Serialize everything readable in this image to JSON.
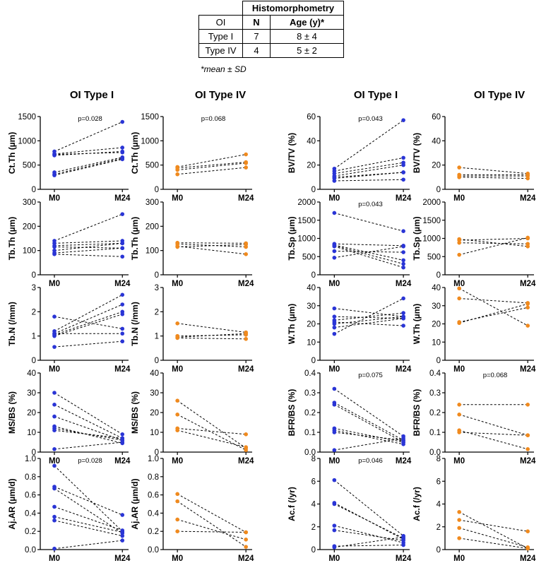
{
  "table": {
    "group_header": "Histomorphometry",
    "headers": [
      "OI",
      "N",
      "Age (y)*"
    ],
    "rows": [
      [
        "Type I",
        "7",
        "8 ± 4"
      ],
      [
        "Type IV",
        "4",
        "5 ± 2"
      ]
    ],
    "footnote": "*mean ± SD"
  },
  "column_titles": [
    "OI Type I",
    "OI Type IV",
    "OI Type I",
    "OI Type IV"
  ],
  "colors": {
    "type1": "#2a35d6",
    "type4": "#f08a1e",
    "line": "#000000"
  },
  "chart_data": [
    {
      "type": "line",
      "ylabel": "Ct.Th (µm)",
      "categories": [
        "M0",
        "M24"
      ],
      "ylim": [
        0,
        1500
      ],
      "yticks": [
        "0",
        "500",
        "1000",
        "1500"
      ],
      "p": "p=0.028",
      "group": "Type I",
      "series": [
        [
          780,
          1390
        ],
        [
          730,
          860
        ],
        [
          700,
          780
        ],
        [
          720,
          760
        ],
        [
          350,
          660
        ],
        [
          310,
          640
        ],
        [
          290,
          620
        ]
      ]
    },
    {
      "type": "line",
      "ylabel": "Ct.Th (µm)",
      "categories": [
        "M0",
        "M24"
      ],
      "ylim": [
        0,
        1500
      ],
      "yticks": [
        "0",
        "500",
        "1000",
        "1500"
      ],
      "p": "p=0.068",
      "group": "Type IV",
      "series": [
        [
          460,
          720
        ],
        [
          440,
          560
        ],
        [
          400,
          540
        ],
        [
          310,
          450
        ]
      ]
    },
    {
      "type": "line",
      "ylabel": "BV/TV (%)",
      "categories": [
        "M0",
        "M24"
      ],
      "ylim": [
        0,
        60
      ],
      "yticks": [
        "0",
        "20",
        "40",
        "60"
      ],
      "p": "p=0.043",
      "group": "Type I",
      "series": [
        [
          17,
          57
        ],
        [
          15,
          26
        ],
        [
          13,
          22
        ],
        [
          11,
          20
        ],
        [
          10,
          14
        ],
        [
          9,
          14
        ],
        [
          7,
          8
        ]
      ]
    },
    {
      "type": "line",
      "ylabel": "BV/TV (%)",
      "categories": [
        "M0",
        "M24"
      ],
      "ylim": [
        0,
        60
      ],
      "yticks": [
        "0",
        "20",
        "40",
        "60"
      ],
      "p": "",
      "group": "Type IV",
      "series": [
        [
          18,
          13
        ],
        [
          12,
          12
        ],
        [
          11,
          11
        ],
        [
          10,
          9
        ]
      ]
    },
    {
      "type": "line",
      "ylabel": "Tb.Th (µm)",
      "categories": [
        "M0",
        "M24"
      ],
      "ylim": [
        0,
        300
      ],
      "yticks": [
        "0",
        "100",
        "200",
        "300"
      ],
      "p": "",
      "group": "Type I",
      "series": [
        [
          140,
          250
        ],
        [
          130,
          140
        ],
        [
          120,
          130
        ],
        [
          115,
          110
        ],
        [
          100,
          130
        ],
        [
          90,
          110
        ],
        [
          85,
          75
        ]
      ]
    },
    {
      "type": "line",
      "ylabel": "Tb.Th (µm)",
      "categories": [
        "M0",
        "M24"
      ],
      "ylim": [
        0,
        300
      ],
      "yticks": [
        "0",
        "100",
        "200",
        "300"
      ],
      "p": "",
      "group": "Type IV",
      "series": [
        [
          132,
          130
        ],
        [
          127,
          115
        ],
        [
          118,
          85
        ],
        [
          115,
          125
        ]
      ]
    },
    {
      "type": "line",
      "ylabel": "Tb.Sp (µm)",
      "categories": [
        "M0",
        "M24"
      ],
      "ylim": [
        0,
        2000
      ],
      "yticks": [
        "0",
        "500",
        "1000",
        "1500",
        "2000"
      ],
      "p": "p=0.043",
      "group": "Type I",
      "series": [
        [
          1700,
          1200
        ],
        [
          850,
          800
        ],
        [
          820,
          400
        ],
        [
          800,
          300
        ],
        [
          780,
          200
        ],
        [
          650,
          620
        ],
        [
          470,
          780
        ]
      ]
    },
    {
      "type": "line",
      "ylabel": "Tb.Sp (µm)",
      "categories": [
        "M0",
        "M24"
      ],
      "ylim": [
        0,
        2000
      ],
      "yticks": [
        "0",
        "500",
        "1000",
        "1500",
        "2000"
      ],
      "p": "",
      "group": "Type IV",
      "series": [
        [
          980,
          780
        ],
        [
          950,
          1000
        ],
        [
          880,
          850
        ],
        [
          550,
          1020
        ]
      ]
    },
    {
      "type": "line",
      "ylabel": "Tb.N (/mm)",
      "categories": [
        "M0",
        "M24"
      ],
      "ylim": [
        0,
        3
      ],
      "yticks": [
        "0",
        "1",
        "2",
        "3"
      ],
      "p": "",
      "group": "Type I",
      "series": [
        [
          1.8,
          1.3
        ],
        [
          1.2,
          2.7
        ],
        [
          1.1,
          2.3
        ],
        [
          1.05,
          2.0
        ],
        [
          1.0,
          1.9
        ],
        [
          1.1,
          1.1
        ],
        [
          0.55,
          0.78
        ]
      ]
    },
    {
      "type": "line",
      "ylabel": "Tb.N (/mm)",
      "categories": [
        "M0",
        "M24"
      ],
      "ylim": [
        0,
        3
      ],
      "yticks": [
        "0",
        "1",
        "2",
        "3"
      ],
      "p": "",
      "group": "Type IV",
      "series": [
        [
          1.52,
          1.15
        ],
        [
          1.0,
          1.05
        ],
        [
          0.95,
          1.1
        ],
        [
          0.92,
          0.88
        ]
      ]
    },
    {
      "type": "line",
      "ylabel": "W.Th (µm)",
      "categories": [
        "M0",
        "M24"
      ],
      "ylim": [
        0,
        40
      ],
      "yticks": [
        "0",
        "10",
        "20",
        "30",
        "40"
      ],
      "p": "",
      "group": "Type I",
      "series": [
        [
          28.5,
          24
        ],
        [
          24,
          23
        ],
        [
          22,
          26
        ],
        [
          21,
          19
        ],
        [
          20,
          24
        ],
        [
          18,
          23
        ],
        [
          14.5,
          34
        ]
      ]
    },
    {
      "type": "line",
      "ylabel": "W.Th (µm)",
      "categories": [
        "M0",
        "M24"
      ],
      "ylim": [
        0,
        40
      ],
      "yticks": [
        "0",
        "10",
        "20",
        "30",
        "40"
      ],
      "p": "",
      "group": "Type IV",
      "series": [
        [
          39.5,
          19
        ],
        [
          34,
          31.5
        ],
        [
          21,
          29
        ],
        [
          20.5,
          31
        ]
      ]
    },
    {
      "type": "line",
      "ylabel": "MS/BS (%)",
      "categories": [
        "M0",
        "M24"
      ],
      "ylim": [
        0,
        40
      ],
      "yticks": [
        "0",
        "10",
        "20",
        "30",
        "40"
      ],
      "p": "",
      "group": "Type I",
      "series": [
        [
          30,
          9
        ],
        [
          24,
          7
        ],
        [
          18,
          6
        ],
        [
          13,
          4.5
        ],
        [
          12,
          6
        ],
        [
          11,
          7
        ],
        [
          1.5,
          5
        ]
      ]
    },
    {
      "type": "line",
      "ylabel": "MS/BS (%)",
      "categories": [
        "M0",
        "M24"
      ],
      "ylim": [
        0,
        40
      ],
      "yticks": [
        "0",
        "10",
        "20",
        "30",
        "40"
      ],
      "p": "",
      "group": "Type IV",
      "series": [
        [
          26,
          2
        ],
        [
          19,
          1
        ],
        [
          12,
          9
        ],
        [
          11,
          2.5
        ]
      ]
    },
    {
      "type": "line",
      "ylabel": "BFR/BS (%)",
      "categories": [
        "M0",
        "M24"
      ],
      "ylim": [
        0,
        0.4
      ],
      "yticks": [
        "0.0",
        "0.1",
        "0.2",
        "0.3",
        "0.4"
      ],
      "p": "p=0.075",
      "group": "Type I",
      "series": [
        [
          0.32,
          0.08
        ],
        [
          0.25,
          0.06
        ],
        [
          0.24,
          0.05
        ],
        [
          0.12,
          0.05
        ],
        [
          0.11,
          0.04
        ],
        [
          0.1,
          0.06
        ],
        [
          0.01,
          0.07
        ]
      ]
    },
    {
      "type": "line",
      "ylabel": "BFR/BS (%)",
      "categories": [
        "M0",
        "M24"
      ],
      "ylim": [
        0,
        0.4
      ],
      "yticks": [
        "0.0",
        "0.1",
        "0.2",
        "0.3",
        "0.4"
      ],
      "p": "p=0.068",
      "group": "Type IV",
      "series": [
        [
          0.24,
          0.24
        ],
        [
          0.19,
          0.085
        ],
        [
          0.11,
          0.015
        ],
        [
          0.1,
          0.085
        ]
      ]
    },
    {
      "type": "line",
      "ylabel": "Aj.AR (µm/d)",
      "categories": [
        "M0",
        "M24"
      ],
      "ylim": [
        0,
        1.0
      ],
      "yticks": [
        "0.0",
        "0.2",
        "0.4",
        "0.6",
        "0.8",
        "1.0"
      ],
      "p": "p=0.028",
      "group": "Type I",
      "series": [
        [
          0.92,
          0.2
        ],
        [
          0.69,
          0.38
        ],
        [
          0.67,
          0.18
        ],
        [
          0.47,
          0.21
        ],
        [
          0.36,
          0.19
        ],
        [
          0.32,
          0.15
        ],
        [
          0.01,
          0.1
        ]
      ]
    },
    {
      "type": "line",
      "ylabel": "Aj.AR (µm/d)",
      "categories": [
        "M0",
        "M24"
      ],
      "ylim": [
        0,
        1.0
      ],
      "yticks": [
        "0.0",
        "0.2",
        "0.4",
        "0.6",
        "0.8",
        "1.0"
      ],
      "p": "",
      "group": "Type IV",
      "series": [
        [
          0.61,
          0.19
        ],
        [
          0.53,
          0.03
        ],
        [
          0.33,
          0.11
        ],
        [
          0.2,
          0.19
        ]
      ]
    },
    {
      "type": "line",
      "ylabel": "Ac.f (/yr)",
      "categories": [
        "M0",
        "M24"
      ],
      "ylim": [
        0,
        8
      ],
      "yticks": [
        "0",
        "2",
        "4",
        "6",
        "8"
      ],
      "p": "p=0.046",
      "group": "Type I",
      "series": [
        [
          6.1,
          1.2
        ],
        [
          4.1,
          0.9
        ],
        [
          4.0,
          1.0
        ],
        [
          2.1,
          0.6
        ],
        [
          1.7,
          0.8
        ],
        [
          0.3,
          0.4
        ],
        [
          0.2,
          1.1
        ]
      ]
    },
    {
      "type": "line",
      "ylabel": "Ac.f (/yr)",
      "categories": [
        "M0",
        "M24"
      ],
      "ylim": [
        0,
        8
      ],
      "yticks": [
        "0",
        "2",
        "4",
        "6",
        "8"
      ],
      "p": "",
      "group": "Type IV",
      "series": [
        [
          3.3,
          0.1
        ],
        [
          2.6,
          1.6
        ],
        [
          1.9,
          0.2
        ],
        [
          1.0,
          0.1
        ]
      ]
    }
  ]
}
